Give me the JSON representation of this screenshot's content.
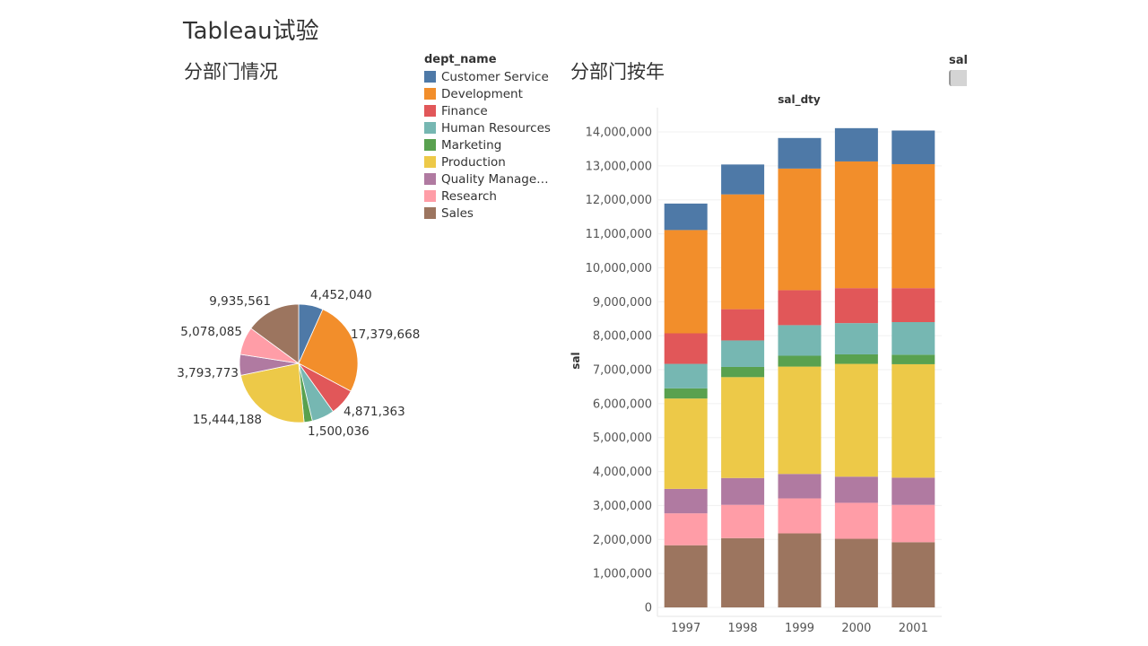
{
  "dashboard": {
    "title": "Tableau试验"
  },
  "legend": {
    "title": "dept_name",
    "items": [
      {
        "label": "Customer Service",
        "color": "#4e79a7"
      },
      {
        "label": "Development",
        "color": "#f28e2b"
      },
      {
        "label": "Finance",
        "color": "#e15759"
      },
      {
        "label": "Human Resources",
        "color": "#76b7b2"
      },
      {
        "label": "Marketing",
        "color": "#59a14f"
      },
      {
        "label": "Production",
        "color": "#edc948"
      },
      {
        "label": "Quality Manageme..",
        "color": "#b07aa1"
      },
      {
        "label": "Research",
        "color": "#ff9da7"
      },
      {
        "label": "Sales",
        "color": "#9c755f"
      }
    ]
  },
  "sal_legend": {
    "title": "sal"
  },
  "chart_data": [
    {
      "type": "pie",
      "title": "分部门情况",
      "categories": [
        "Customer Service",
        "Development",
        "Finance",
        "Human Resources",
        "Marketing",
        "Production",
        "Quality Management",
        "Research",
        "Sales"
      ],
      "values": [
        4452040,
        17379668,
        4871363,
        4100000,
        1500036,
        15444188,
        3793773,
        5078085,
        9935561
      ],
      "labels": [
        {
          "category": "Customer Service",
          "text": "4,452,040"
        },
        {
          "category": "Development",
          "text": "17,379,668"
        },
        {
          "category": "Finance",
          "text": "4,871,363"
        },
        {
          "category": "Marketing",
          "text": "1,500,036"
        },
        {
          "category": "Production",
          "text": "15,444,188"
        },
        {
          "category": "Quality Management",
          "text": "3,793,773"
        },
        {
          "category": "Research",
          "text": "5,078,085"
        },
        {
          "category": "Sales",
          "text": "9,935,561"
        }
      ]
    },
    {
      "type": "bar",
      "stacked": true,
      "title": "分部门按年",
      "header": "sal_dty",
      "xlabel": "",
      "ylabel": "sal",
      "categories": [
        "1997",
        "1998",
        "1999",
        "2000",
        "2001"
      ],
      "ylim": [
        0,
        14000000
      ],
      "yticks": [
        0,
        1000000,
        2000000,
        3000000,
        4000000,
        5000000,
        6000000,
        7000000,
        8000000,
        9000000,
        10000000,
        11000000,
        12000000,
        13000000,
        14000000
      ],
      "ytick_labels": [
        "0",
        "1,000,000",
        "2,000,000",
        "3,000,000",
        "4,000,000",
        "5,000,000",
        "6,000,000",
        "7,000,000",
        "8,000,000",
        "9,000,000",
        "10,000,000",
        "11,000,000",
        "12,000,000",
        "13,000,000",
        "14,000,000"
      ],
      "grid": true,
      "series": [
        {
          "name": "Sales",
          "values": [
            1830000,
            2040000,
            2180000,
            2020000,
            1920000
          ]
        },
        {
          "name": "Research",
          "values": [
            940000,
            980000,
            1030000,
            1060000,
            1100000
          ]
        },
        {
          "name": "Quality Management",
          "values": [
            720000,
            790000,
            720000,
            770000,
            800000
          ]
        },
        {
          "name": "Production",
          "values": [
            2660000,
            2970000,
            3160000,
            3320000,
            3340000
          ]
        },
        {
          "name": "Marketing",
          "values": [
            300000,
            300000,
            320000,
            280000,
            280000
          ]
        },
        {
          "name": "Human Resources",
          "values": [
            720000,
            780000,
            900000,
            920000,
            960000
          ]
        },
        {
          "name": "Finance",
          "values": [
            900000,
            920000,
            1030000,
            1030000,
            1000000
          ]
        },
        {
          "name": "Development",
          "values": [
            3040000,
            3380000,
            3580000,
            3730000,
            3650000
          ]
        },
        {
          "name": "Customer Service",
          "values": [
            780000,
            880000,
            900000,
            980000,
            990000
          ]
        }
      ]
    }
  ]
}
